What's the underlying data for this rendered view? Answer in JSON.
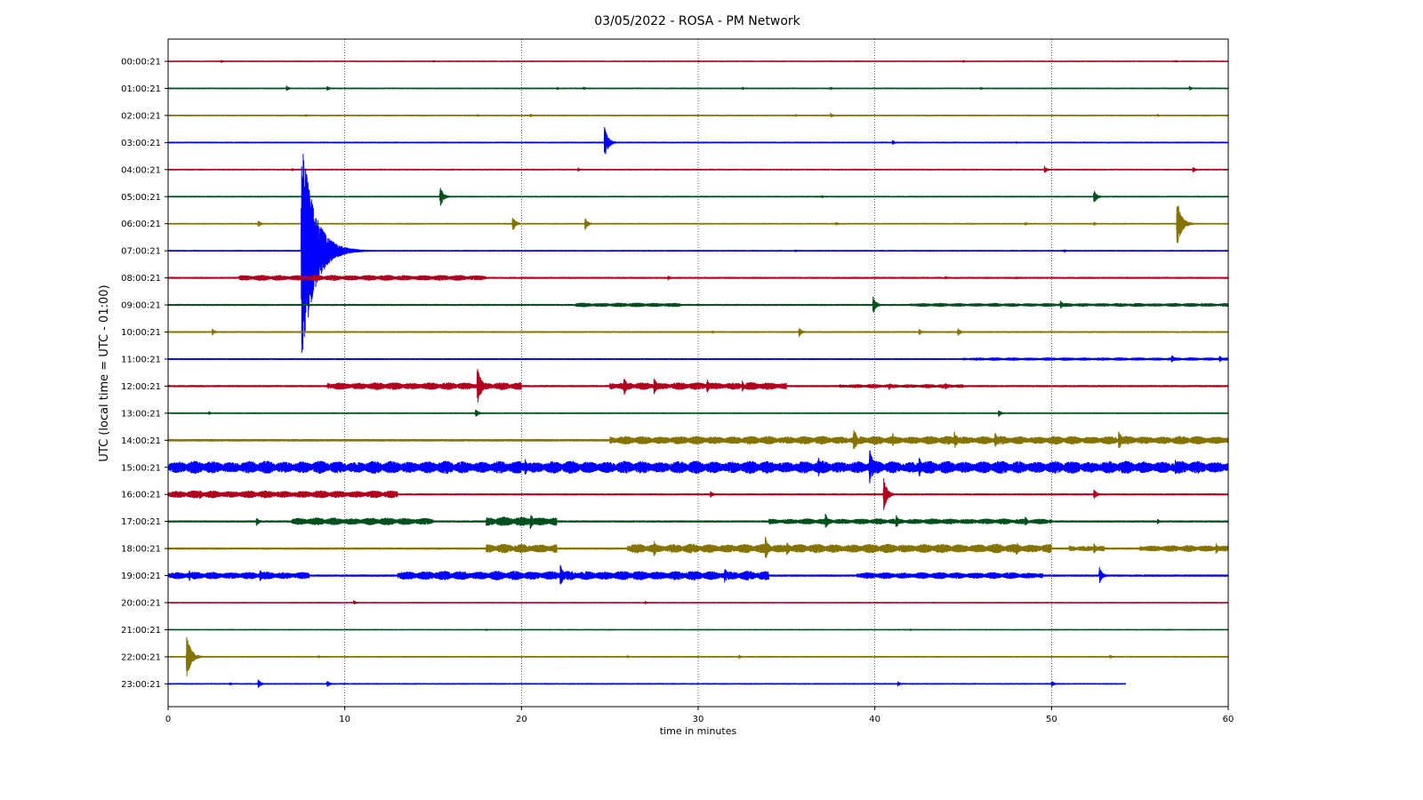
{
  "chart_data": {
    "type": "line",
    "title": "03/05/2022 - ROSA - PM Network",
    "xlabel": "time in minutes",
    "ylabel": "UTC (local time = UTC - 01:00)",
    "xlim": [
      0,
      60
    ],
    "x_ticks": [
      "0",
      "10",
      "20",
      "30",
      "40",
      "50",
      "60"
    ],
    "grid": "vertical dotted at major x ticks",
    "colors": [
      "#b0001e",
      "#00501e",
      "#857300",
      "#0000ff"
    ],
    "traces": [
      {
        "label": "00:00:21",
        "noise": 0.4,
        "end": 60,
        "events": [
          [
            3.0,
            1.5
          ],
          [
            15,
            1.2
          ],
          [
            30,
            1.0
          ],
          [
            45,
            1.2
          ],
          [
            57,
            1.3
          ]
        ],
        "bursts": []
      },
      {
        "label": "01:00:21",
        "noise": 0.5,
        "end": 60,
        "events": [
          [
            6.7,
            3
          ],
          [
            9.0,
            2.5
          ],
          [
            22,
            1.5
          ],
          [
            23.5,
            1.8
          ],
          [
            32.5,
            1.5
          ],
          [
            37.5,
            1.5
          ],
          [
            46,
            1.4
          ],
          [
            57.8,
            2.5
          ]
        ],
        "bursts": []
      },
      {
        "label": "02:00:21",
        "noise": 0.5,
        "end": 60,
        "events": [
          [
            7.8,
            1.5
          ],
          [
            17.5,
            1.5
          ],
          [
            20.5,
            1.8
          ],
          [
            35.5,
            1.4
          ],
          [
            37.5,
            3
          ],
          [
            56,
            1.5
          ]
        ],
        "bursts": []
      },
      {
        "label": "03:00:21",
        "noise": 0.5,
        "end": 60,
        "events": [
          [
            24.7,
            18
          ],
          [
            41,
            2.5
          ],
          [
            48,
            1.2
          ]
        ],
        "bursts": []
      },
      {
        "label": "04:00:21",
        "noise": 0.5,
        "end": 60,
        "events": [
          [
            7.0,
            1.5
          ],
          [
            23.2,
            2
          ],
          [
            49.6,
            4
          ],
          [
            58,
            3.5
          ]
        ],
        "bursts": []
      },
      {
        "label": "05:00:21",
        "noise": 0.5,
        "end": 60,
        "events": [
          [
            15.4,
            12
          ],
          [
            37,
            1.5
          ],
          [
            52.4,
            8
          ]
        ],
        "bursts": []
      },
      {
        "label": "06:00:21",
        "noise": 0.5,
        "end": 60,
        "events": [
          [
            5.1,
            4
          ],
          [
            19.5,
            9
          ],
          [
            23.6,
            7
          ],
          [
            37.8,
            2
          ],
          [
            48.5,
            2
          ],
          [
            52.4,
            2
          ],
          [
            57.1,
            28
          ]
        ],
        "bursts": []
      },
      {
        "label": "07:00:21",
        "noise": 0.5,
        "end": 60,
        "events": [
          [
            7.55,
            130
          ],
          [
            35.5,
            1.2
          ],
          [
            50.7,
            1.8
          ]
        ],
        "bursts": []
      },
      {
        "label": "08:00:21",
        "noise": 0.7,
        "end": 60,
        "events": [
          [
            28.3,
            2.5
          ],
          [
            44,
            1.8
          ],
          [
            48,
            1.5
          ]
        ],
        "bursts": [
          [
            4,
            18,
            3
          ]
        ]
      },
      {
        "label": "09:00:21",
        "noise": 0.7,
        "end": 60,
        "events": [
          [
            39.9,
            10
          ],
          [
            50.5,
            5
          ],
          [
            58.5,
            2
          ]
        ],
        "bursts": [
          [
            23,
            29,
            2.2
          ],
          [
            42,
            60,
            1.8
          ]
        ]
      },
      {
        "label": "10:00:21",
        "noise": 0.6,
        "end": 60,
        "events": [
          [
            2.5,
            4
          ],
          [
            30.8,
            1.5
          ],
          [
            35.7,
            6
          ],
          [
            42.5,
            3.5
          ],
          [
            44.7,
            4.5
          ]
        ],
        "bursts": []
      },
      {
        "label": "11:00:21",
        "noise": 0.6,
        "end": 60,
        "events": [
          [
            56.8,
            5
          ],
          [
            59.5,
            4
          ]
        ],
        "bursts": [
          [
            45,
            60,
            1.5
          ]
        ]
      },
      {
        "label": "12:00:21",
        "noise": 0.8,
        "end": 60,
        "events": [
          [
            17.5,
            22
          ],
          [
            25.8,
            11
          ],
          [
            27.5,
            10
          ],
          [
            30.5,
            8
          ],
          [
            32.5,
            6
          ],
          [
            40.8,
            4
          ],
          [
            44,
            3.5
          ]
        ],
        "bursts": [
          [
            9,
            20,
            4
          ],
          [
            25,
            35,
            4
          ],
          [
            38,
            45,
            2
          ]
        ]
      },
      {
        "label": "13:00:21",
        "noise": 0.5,
        "end": 60,
        "events": [
          [
            2.3,
            2
          ],
          [
            17.4,
            5
          ],
          [
            47,
            4
          ]
        ],
        "bursts": []
      },
      {
        "label": "14:00:21",
        "noise": 1.0,
        "end": 60,
        "events": [
          [
            38.8,
            15
          ],
          [
            41,
            8
          ],
          [
            44.5,
            12
          ],
          [
            46.8,
            10
          ],
          [
            53.8,
            12
          ]
        ],
        "bursts": [
          [
            25,
            60,
            4.5
          ]
        ]
      },
      {
        "label": "15:00:21",
        "noise": 1.2,
        "end": 60,
        "events": [
          [
            20.2,
            10
          ],
          [
            36.8,
            12
          ],
          [
            39.7,
            22
          ],
          [
            42.5,
            12
          ],
          [
            57,
            10
          ]
        ],
        "bursts": [
          [
            0,
            60,
            7
          ]
        ]
      },
      {
        "label": "16:00:21",
        "noise": 0.7,
        "end": 60,
        "events": [
          [
            1.8,
            6
          ],
          [
            30.7,
            4
          ],
          [
            40.5,
            18
          ],
          [
            52.4,
            6
          ]
        ],
        "bursts": [
          [
            0,
            13,
            4
          ]
        ]
      },
      {
        "label": "17:00:21",
        "noise": 0.8,
        "end": 60,
        "events": [
          [
            5,
            5
          ],
          [
            20.5,
            10
          ],
          [
            37.2,
            9
          ],
          [
            41.2,
            8
          ],
          [
            48.5,
            6
          ],
          [
            56,
            3
          ]
        ],
        "bursts": [
          [
            7,
            15,
            4
          ],
          [
            18,
            22,
            5
          ],
          [
            34,
            50,
            3
          ]
        ]
      },
      {
        "label": "18:00:21",
        "noise": 0.8,
        "end": 60,
        "events": [
          [
            27.5,
            10
          ],
          [
            33.8,
            14
          ],
          [
            35,
            10
          ],
          [
            48,
            9
          ],
          [
            52.4,
            6
          ],
          [
            59.3,
            7
          ]
        ],
        "bursts": [
          [
            18,
            22,
            5
          ],
          [
            26,
            50,
            5
          ],
          [
            51,
            53,
            3
          ],
          [
            55,
            60,
            3.5
          ]
        ]
      },
      {
        "label": "19:00:21",
        "noise": 0.8,
        "end": 60,
        "events": [
          [
            1.2,
            6
          ],
          [
            5.2,
            7
          ],
          [
            22.2,
            13
          ],
          [
            31.5,
            10
          ],
          [
            52.7,
            10
          ]
        ],
        "bursts": [
          [
            0,
            8,
            4
          ],
          [
            13,
            34,
            5
          ],
          [
            39,
            49.5,
            3.5
          ]
        ]
      },
      {
        "label": "20:00:21",
        "noise": 0.4,
        "end": 60,
        "events": [
          [
            10.5,
            2.5
          ],
          [
            27,
            1.5
          ]
        ],
        "bursts": []
      },
      {
        "label": "21:00:21",
        "noise": 0.4,
        "end": 60,
        "events": [
          [
            18,
            1
          ],
          [
            42,
            1
          ]
        ],
        "bursts": []
      },
      {
        "label": "22:00:21",
        "noise": 0.5,
        "end": 60,
        "events": [
          [
            1.05,
            26
          ],
          [
            8.5,
            1.5
          ],
          [
            26,
            1.5
          ],
          [
            32.3,
            2.5
          ],
          [
            53.3,
            2
          ]
        ],
        "bursts": []
      },
      {
        "label": "23:00:21",
        "noise": 0.5,
        "end": 54.2,
        "events": [
          [
            3.5,
            1.5
          ],
          [
            5.1,
            5
          ],
          [
            9.0,
            4
          ],
          [
            41.3,
            2.5
          ],
          [
            50,
            3.5
          ]
        ],
        "bursts": []
      }
    ]
  }
}
